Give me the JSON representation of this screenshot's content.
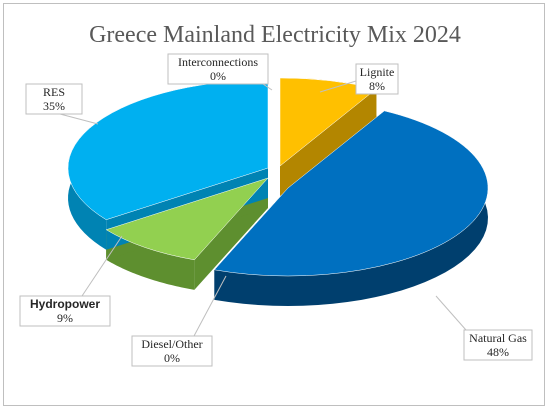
{
  "chart_data": {
    "type": "pie",
    "title": "Greece Mainland Electricity Mix 2024",
    "slices": [
      {
        "label": "Lignite",
        "value": 8,
        "value_label": "8%",
        "color": "#FFC000",
        "side_color": "#B38600",
        "emphasis": false
      },
      {
        "label": "Natural Gas",
        "value": 48,
        "value_label": "48%",
        "color": "#0070C0",
        "side_color": "#003F6E",
        "emphasis": false
      },
      {
        "label": "Diesel/Other",
        "value": 0,
        "value_label": "0%",
        "color": "#1F7A1F",
        "side_color": "#1A5A1A",
        "emphasis": false
      },
      {
        "label": "Hydropower",
        "value": 9,
        "value_label": "9%",
        "color": "#92D050",
        "side_color": "#5E8F2F",
        "emphasis": true
      },
      {
        "label": "RES",
        "value": 35,
        "value_label": "35%",
        "color": "#00B0F0",
        "side_color": "#0083B3",
        "emphasis": false
      },
      {
        "label": "Interconnections",
        "value": 0,
        "value_label": "0%",
        "color": "#A6A6A6",
        "side_color": "#7F7F7F",
        "emphasis": false
      }
    ],
    "legend": "none",
    "style": "3d-exploded"
  }
}
